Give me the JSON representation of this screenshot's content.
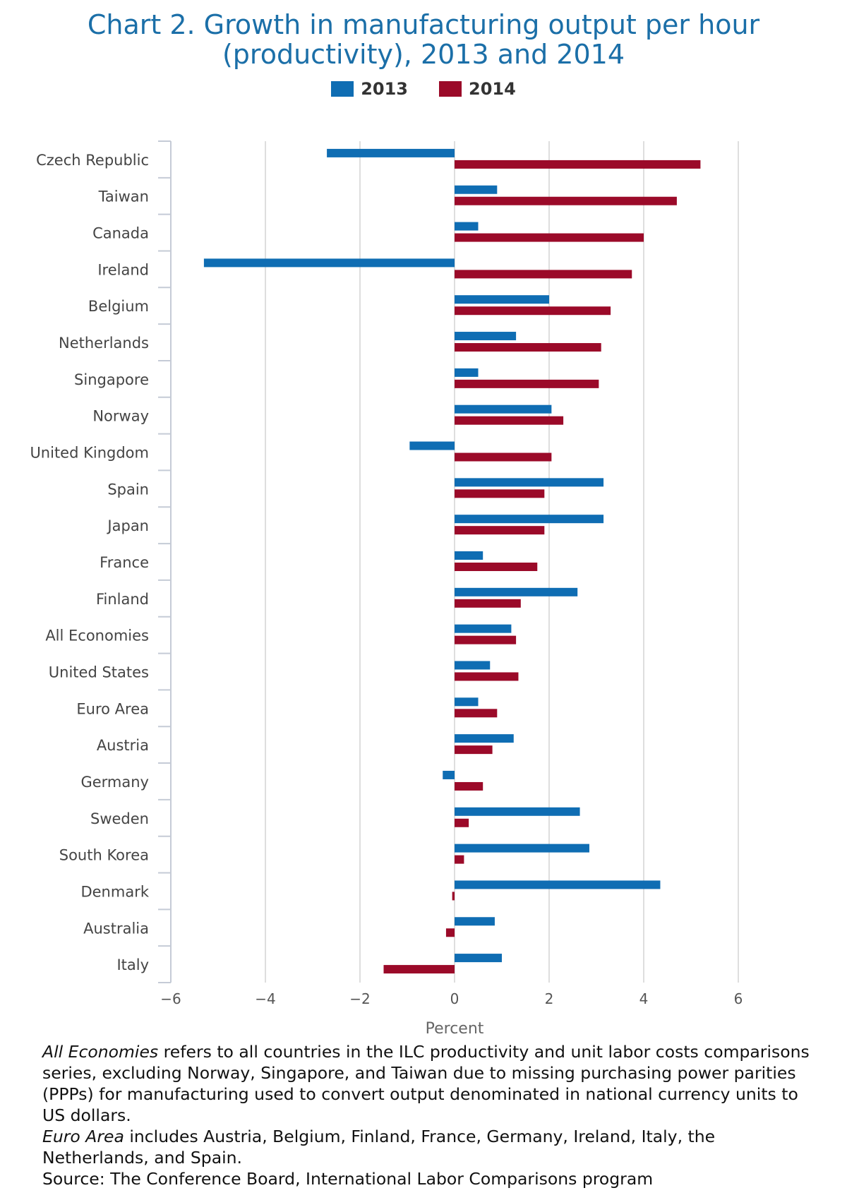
{
  "chart_data": {
    "type": "bar",
    "orientation": "horizontal",
    "title": "Chart 2. Growth in manufacturing output per hour (productivity), 2013 and 2014",
    "title_lines": [
      "Chart 2. Growth in manufacturing output per hour",
      "(productivity), 2013 and 2014"
    ],
    "xlabel": "Percent",
    "ylabel": "",
    "xlim": [
      -6,
      6
    ],
    "x_ticks": [
      "−6",
      "−4",
      "−2",
      "0",
      "2",
      "4",
      "6"
    ],
    "grid": "vertical",
    "legend_position": "top",
    "categories": [
      "Czech Republic",
      "Taiwan",
      "Canada",
      "Ireland",
      "Belgium",
      "Netherlands",
      "Singapore",
      "Norway",
      "United Kingdom",
      "Spain",
      "Japan",
      "France",
      "Finland",
      "All Economies",
      "United States",
      "Euro Area",
      "Austria",
      "Germany",
      "Sweden",
      "South Korea",
      "Denmark",
      "Australia",
      "Italy"
    ],
    "series": [
      {
        "name": "2013",
        "color": "#0f6db3",
        "values": [
          -2.7,
          0.9,
          0.5,
          -5.3,
          2.0,
          1.3,
          0.5,
          2.05,
          -0.95,
          3.15,
          3.15,
          0.6,
          2.6,
          1.2,
          0.75,
          0.5,
          1.25,
          -0.25,
          2.65,
          2.85,
          4.35,
          0.85,
          1.0
        ]
      },
      {
        "name": "2014",
        "color": "#9b0a29",
        "values": [
          5.2,
          4.7,
          4.0,
          3.75,
          3.3,
          3.1,
          3.05,
          2.3,
          2.05,
          1.9,
          1.9,
          1.75,
          1.4,
          1.3,
          1.35,
          0.9,
          0.8,
          0.6,
          0.3,
          0.2,
          -0.05,
          -0.18,
          -1.5
        ]
      }
    ]
  },
  "footnote": {
    "p1_em": "All Economies",
    "p1_text": " refers to all countries in the ILC productivity and unit labor costs comparisons series, excluding Norway, Singapore, and Taiwan due to missing purchasing power parities (PPPs) for manufacturing used to convert output denominated in national currency units to US dollars.",
    "p2_em": "Euro Area",
    "p2_text": " includes Austria, Belgium, Finland, France, Germany, Ireland, Italy, the Netherlands, and Spain.",
    "source": "Source: The Conference Board, International Labor Comparisons program"
  }
}
